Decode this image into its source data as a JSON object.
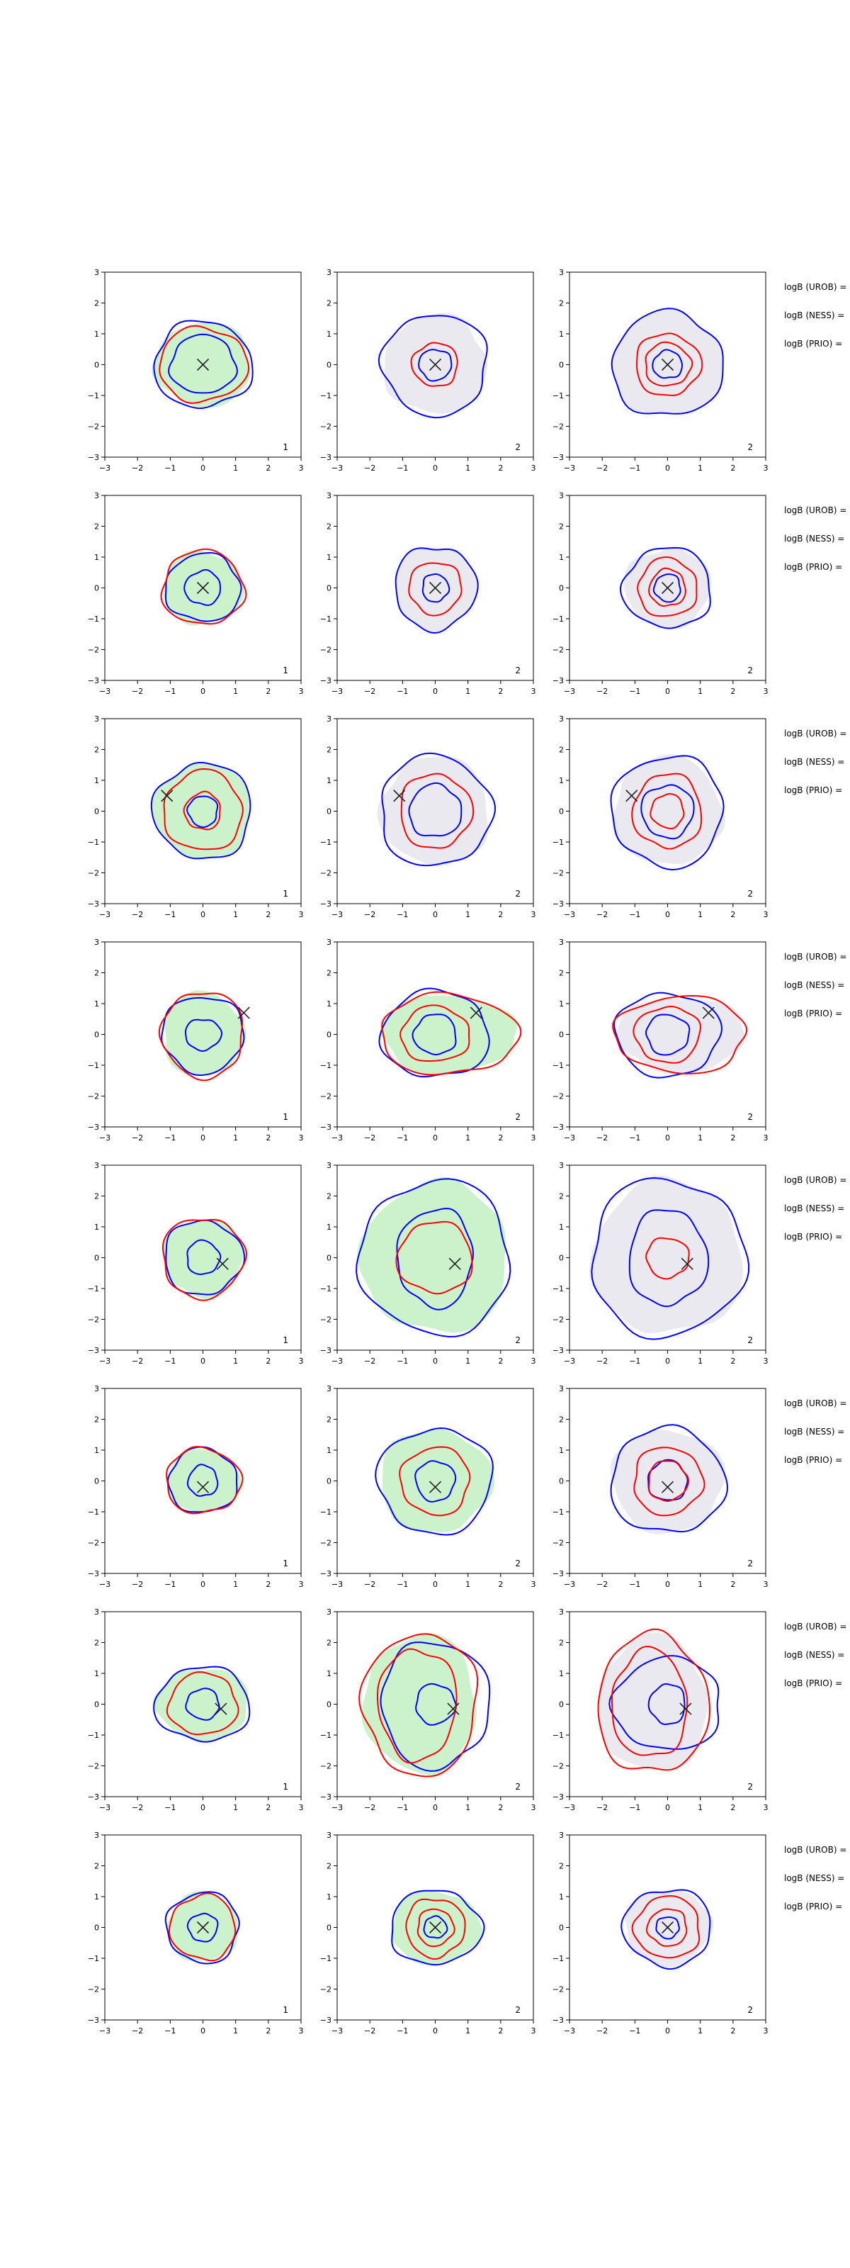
{
  "figure": {
    "axis": {
      "xlim": [
        -3,
        3
      ],
      "ylim": [
        -3,
        3
      ],
      "ticks": [
        -3,
        -2,
        -1,
        0,
        1,
        2,
        3
      ]
    },
    "colors": {
      "blue": "#0000ff",
      "red": "#ff0000",
      "green": "#ccf2cc",
      "gray": "#e9e9ef",
      "marker": "#222222"
    },
    "side_labels": [
      "logB (UROB) =",
      "logB (NESS) =",
      "logB (PRIO) ="
    ]
  },
  "chart_data": [
    {
      "type": "contour",
      "row": 1,
      "marker": [
        0,
        0
      ],
      "fill": [
        "green",
        "gray",
        "gray"
      ],
      "corner_labels": [
        "1",
        "2",
        "2"
      ],
      "contours": [
        [
          {
            "color": "blue",
            "rx": 1.0,
            "ry": 0.95
          },
          {
            "color": "blue",
            "rx": 1.5,
            "ry": 1.4
          },
          {
            "color": "red",
            "rx": 1.35,
            "ry": 1.2
          }
        ],
        [
          {
            "color": "blue",
            "rx": 0.5,
            "ry": 0.5
          },
          {
            "color": "blue",
            "rx": 1.6,
            "ry": 1.65
          },
          {
            "color": "red",
            "rx": 0.7,
            "ry": 0.7
          }
        ],
        [
          {
            "color": "blue",
            "rx": 0.45,
            "ry": 0.45
          },
          {
            "color": "blue",
            "rx": 1.7,
            "ry": 1.7
          },
          {
            "color": "red",
            "rx": 0.7,
            "ry": 0.7
          },
          {
            "color": "red",
            "rx": 1.0,
            "ry": 1.0
          }
        ]
      ]
    },
    {
      "type": "contour",
      "row": 2,
      "marker": [
        0,
        0
      ],
      "fill": [
        "green",
        "gray",
        "gray"
      ],
      "corner_labels": [
        "1",
        "2",
        "2"
      ],
      "contours": [
        [
          {
            "color": "blue",
            "rx": 0.55,
            "ry": 0.55
          },
          {
            "color": "blue",
            "rx": 1.15,
            "ry": 1.1
          },
          {
            "color": "red",
            "rx": 1.25,
            "ry": 1.2
          }
        ],
        [
          {
            "color": "blue",
            "rx": 0.4,
            "ry": 0.45
          },
          {
            "color": "blue",
            "rx": 1.25,
            "ry": 1.35
          },
          {
            "color": "red",
            "rx": 0.8,
            "ry": 0.85
          }
        ],
        [
          {
            "color": "blue",
            "rx": 0.4,
            "ry": 0.45
          },
          {
            "color": "blue",
            "rx": 1.35,
            "ry": 1.3
          },
          {
            "color": "red",
            "rx": 0.55,
            "ry": 0.6
          },
          {
            "color": "red",
            "rx": 0.9,
            "ry": 0.95
          }
        ]
      ]
    },
    {
      "type": "contour",
      "row": 3,
      "marker": [
        -1.1,
        0.5
      ],
      "fill": [
        "green",
        "gray",
        "gray"
      ],
      "corner_labels": [
        "1",
        "2",
        "2"
      ],
      "contours": [
        [
          {
            "color": "blue",
            "rx": 0.45,
            "ry": 0.5
          },
          {
            "color": "blue",
            "rx": 1.5,
            "ry": 1.55
          },
          {
            "color": "red",
            "rx": 0.55,
            "ry": 0.6
          },
          {
            "color": "red",
            "rx": 1.2,
            "ry": 1.3
          }
        ],
        [
          {
            "color": "blue",
            "rx": 0.8,
            "ry": 0.85
          },
          {
            "color": "blue",
            "rx": 1.7,
            "ry": 1.8
          },
          {
            "color": "red",
            "rx": 1.1,
            "ry": 1.2
          }
        ],
        [
          {
            "color": "blue",
            "rx": 0.8,
            "ry": 0.85
          },
          {
            "color": "blue",
            "rx": 1.7,
            "ry": 1.8
          },
          {
            "color": "red",
            "rx": 0.5,
            "ry": 0.55
          },
          {
            "color": "red",
            "rx": 1.05,
            "ry": 1.2
          }
        ]
      ]
    },
    {
      "type": "contour",
      "row": 4,
      "marker": [
        1.25,
        0.7
      ],
      "fill": [
        "green",
        "green",
        "gray"
      ],
      "corner_labels": [
        "1",
        "2",
        "2"
      ],
      "contours": [
        [
          {
            "color": "blue",
            "rx": 0.55,
            "ry": 0.5
          },
          {
            "color": "blue",
            "rx": 1.25,
            "ry": 1.25
          },
          {
            "color": "red",
            "rx": 1.25,
            "ry": 1.4
          }
        ],
        [
          {
            "color": "blue",
            "rx": 0.65,
            "ry": 0.65
          },
          {
            "color": "blue",
            "rx": 1.65,
            "ry": 1.4
          },
          {
            "color": "red",
            "rx": 1.05,
            "ry": 0.9
          },
          {
            "color": "red",
            "rx": 2.1,
            "ry": 1.3,
            "cx": 0.4
          }
        ],
        [
          {
            "color": "blue",
            "rx": 0.65,
            "ry": 0.65
          },
          {
            "color": "blue",
            "rx": 1.6,
            "ry": 1.35
          },
          {
            "color": "red",
            "rx": 1.0,
            "ry": 0.9
          },
          {
            "color": "red",
            "rx": 2.0,
            "ry": 1.25,
            "cx": 0.4
          }
        ]
      ]
    },
    {
      "type": "contour",
      "row": 5,
      "marker": [
        0.6,
        -0.2
      ],
      "fill": [
        "green",
        "green",
        "gray"
      ],
      "corner_labels": [
        "1",
        "2",
        "2"
      ],
      "contours": [
        [
          {
            "color": "blue",
            "rx": 0.5,
            "ry": 0.55
          },
          {
            "color": "blue",
            "rx": 1.2,
            "ry": 1.2
          },
          {
            "color": "red",
            "rx": 1.25,
            "ry": 1.3
          }
        ],
        [
          {
            "color": "blue",
            "rx": 1.15,
            "ry": 1.6
          },
          {
            "color": "blue",
            "rx": 2.3,
            "ry": 2.5
          },
          {
            "color": "red",
            "rx": 1.15,
            "ry": 1.15
          }
        ],
        [
          {
            "color": "blue",
            "rx": 1.2,
            "ry": 1.55
          },
          {
            "color": "blue",
            "rx": 2.35,
            "ry": 2.55
          },
          {
            "color": "red",
            "rx": 0.65,
            "ry": 0.65
          }
        ]
      ]
    },
    {
      "type": "contour",
      "row": 6,
      "marker": [
        0,
        -0.2
      ],
      "fill": [
        "green",
        "green",
        "gray"
      ],
      "corner_labels": [
        "1",
        "2",
        "2"
      ],
      "contours": [
        [
          {
            "color": "blue",
            "rx": 0.45,
            "ry": 0.5
          },
          {
            "color": "blue",
            "rx": 1.05,
            "ry": 1.05
          },
          {
            "color": "red",
            "rx": 1.15,
            "ry": 1.05
          }
        ],
        [
          {
            "color": "blue",
            "rx": 0.6,
            "ry": 0.65
          },
          {
            "color": "blue",
            "rx": 1.75,
            "ry": 1.7
          },
          {
            "color": "red",
            "rx": 1.05,
            "ry": 1.1
          }
        ],
        [
          {
            "color": "blue",
            "rx": 0.6,
            "ry": 0.65
          },
          {
            "color": "blue",
            "rx": 1.75,
            "ry": 1.7
          },
          {
            "color": "red",
            "rx": 0.6,
            "ry": 0.65
          },
          {
            "color": "red",
            "rx": 1.05,
            "ry": 1.1
          }
        ]
      ]
    },
    {
      "type": "contour",
      "row": 7,
      "marker": [
        0.55,
        -0.15
      ],
      "fill": [
        "green",
        "green",
        "gray"
      ],
      "corner_labels": [
        "1",
        "2",
        "2"
      ],
      "contours": [
        [
          {
            "color": "blue",
            "rx": 0.5,
            "ry": 0.5
          },
          {
            "color": "blue",
            "rx": 1.45,
            "ry": 1.2
          },
          {
            "color": "red",
            "rx": 1.05,
            "ry": 1.0
          }
        ],
        [
          {
            "color": "blue",
            "rx": 0.6,
            "ry": 0.65
          },
          {
            "color": "blue",
            "rx": 1.65,
            "ry": 2.05
          },
          {
            "color": "red",
            "rx": 1.2,
            "ry": 1.8,
            "cx": -0.55
          },
          {
            "color": "red",
            "rx": 1.75,
            "ry": 2.3,
            "cx": -0.45
          }
        ],
        [
          {
            "color": "blue",
            "rx": 0.55,
            "ry": 0.65
          },
          {
            "color": "blue",
            "rx": 1.65,
            "ry": 1.5
          },
          {
            "color": "red",
            "rx": 1.15,
            "ry": 1.75,
            "cx": -0.55
          },
          {
            "color": "red",
            "rx": 1.7,
            "ry": 2.25,
            "cx": -0.45
          }
        ]
      ]
    },
    {
      "type": "contour",
      "row": 8,
      "marker": [
        0,
        0
      ],
      "fill": [
        "green",
        "green",
        "gray"
      ],
      "corner_labels": [
        "1",
        "2",
        "2"
      ],
      "contours": [
        [
          {
            "color": "blue",
            "rx": 0.45,
            "ry": 0.45
          },
          {
            "color": "blue",
            "rx": 1.1,
            "ry": 1.15
          },
          {
            "color": "red",
            "rx": 1.0,
            "ry": 1.05
          }
        ],
        [
          {
            "color": "blue",
            "rx": 0.35,
            "ry": 0.35
          },
          {
            "color": "blue",
            "rx": 1.4,
            "ry": 1.2
          },
          {
            "color": "red",
            "rx": 0.55,
            "ry": 0.6
          },
          {
            "color": "red",
            "rx": 0.9,
            "ry": 0.95
          }
        ],
        [
          {
            "color": "blue",
            "rx": 0.35,
            "ry": 0.35
          },
          {
            "color": "blue",
            "rx": 1.35,
            "ry": 1.25
          },
          {
            "color": "red",
            "rx": 0.6,
            "ry": 0.6
          },
          {
            "color": "red",
            "rx": 1.0,
            "ry": 1.0
          }
        ]
      ]
    }
  ]
}
